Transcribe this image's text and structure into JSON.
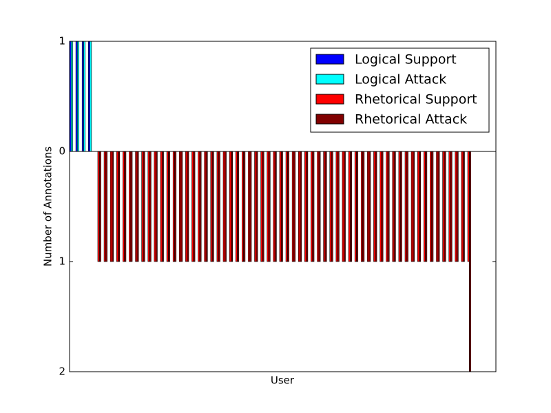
{
  "chart_data": {
    "type": "bar",
    "x_label": "User",
    "y_label": "Number of Annotations",
    "x": [
      0,
      1,
      2,
      3,
      4,
      5,
      6,
      7,
      8,
      9,
      10,
      11,
      12,
      13,
      14,
      15,
      16,
      17,
      18,
      19,
      20,
      21,
      22,
      23,
      24,
      25,
      26,
      27,
      28,
      29,
      30,
      31,
      32,
      33,
      34,
      35,
      36,
      37,
      38,
      39,
      40,
      41,
      42,
      43,
      44,
      45,
      46,
      47,
      48,
      49,
      50,
      51,
      52,
      53,
      54,
      55,
      56,
      57,
      58,
      59,
      60,
      61,
      62,
      63
    ],
    "xlim": [
      0,
      68
    ],
    "ylim": [
      -2,
      1
    ],
    "yticks": [
      {
        "value": -2,
        "label": "2"
      },
      {
        "value": -1,
        "label": "1"
      },
      0,
      1
    ],
    "legend_position": "upper right",
    "series": [
      {
        "name": "Logical Support",
        "color": "#0000ff",
        "values": [
          1,
          1,
          1,
          1,
          0,
          0,
          0,
          0,
          0,
          0,
          0,
          0,
          0,
          0,
          0,
          0,
          0,
          0,
          0,
          0,
          0,
          0,
          0,
          0,
          0,
          0,
          0,
          0,
          0,
          0,
          0,
          0,
          0,
          0,
          0,
          0,
          0,
          0,
          0,
          0,
          0,
          0,
          0,
          0,
          0,
          0,
          0,
          0,
          0,
          0,
          0,
          0,
          0,
          0,
          0,
          0,
          0,
          0,
          0,
          0,
          0,
          0,
          0,
          0
        ]
      },
      {
        "name": "Logical Attack",
        "color": "#00ffff",
        "values": [
          1,
          1,
          1,
          1,
          0,
          0,
          0,
          0,
          0,
          0,
          0,
          0,
          0,
          0,
          0,
          0,
          0,
          0,
          0,
          0,
          0,
          0,
          0,
          0,
          0,
          0,
          0,
          0,
          0,
          0,
          0,
          0,
          0,
          0,
          0,
          0,
          0,
          0,
          0,
          0,
          0,
          0,
          0,
          0,
          0,
          0,
          0,
          0,
          0,
          0,
          0,
          0,
          0,
          0,
          0,
          0,
          0,
          0,
          0,
          0,
          0,
          0,
          0,
          0
        ]
      },
      {
        "name": "Rhetorical Support",
        "color": "#ff0000",
        "values": [
          0,
          0,
          0,
          0,
          -1,
          -1,
          -1,
          -1,
          -1,
          -1,
          -1,
          -1,
          -1,
          -1,
          -1,
          -1,
          -1,
          -1,
          -1,
          -1,
          -1,
          -1,
          -1,
          -1,
          -1,
          -1,
          -1,
          -1,
          -1,
          -1,
          -1,
          -1,
          -1,
          -1,
          -1,
          -1,
          -1,
          -1,
          -1,
          -1,
          -1,
          -1,
          -1,
          -1,
          -1,
          -1,
          -1,
          -1,
          -1,
          -1,
          -1,
          -1,
          -1,
          -1,
          -1,
          -1,
          -1,
          -1,
          -1,
          -1,
          -1,
          -1,
          -1,
          -1
        ]
      },
      {
        "name": "Rhetorical Attack",
        "color": "#800000",
        "values": [
          0,
          0,
          0,
          0,
          -1,
          -1,
          -1,
          -1,
          -1,
          -1,
          -1,
          -1,
          -1,
          -1,
          -1,
          -1,
          -1,
          -1,
          -1,
          -1,
          -1,
          -1,
          -1,
          -1,
          -1,
          -1,
          -1,
          -1,
          -1,
          -1,
          -1,
          -1,
          -1,
          -1,
          -1,
          -1,
          -1,
          -1,
          -1,
          -1,
          -1,
          -1,
          -1,
          -1,
          -1,
          -1,
          -1,
          -1,
          -1,
          -1,
          -1,
          -1,
          -1,
          -1,
          -1,
          -1,
          -1,
          -1,
          -1,
          -1,
          -1,
          -1,
          -1,
          -2
        ]
      }
    ]
  }
}
